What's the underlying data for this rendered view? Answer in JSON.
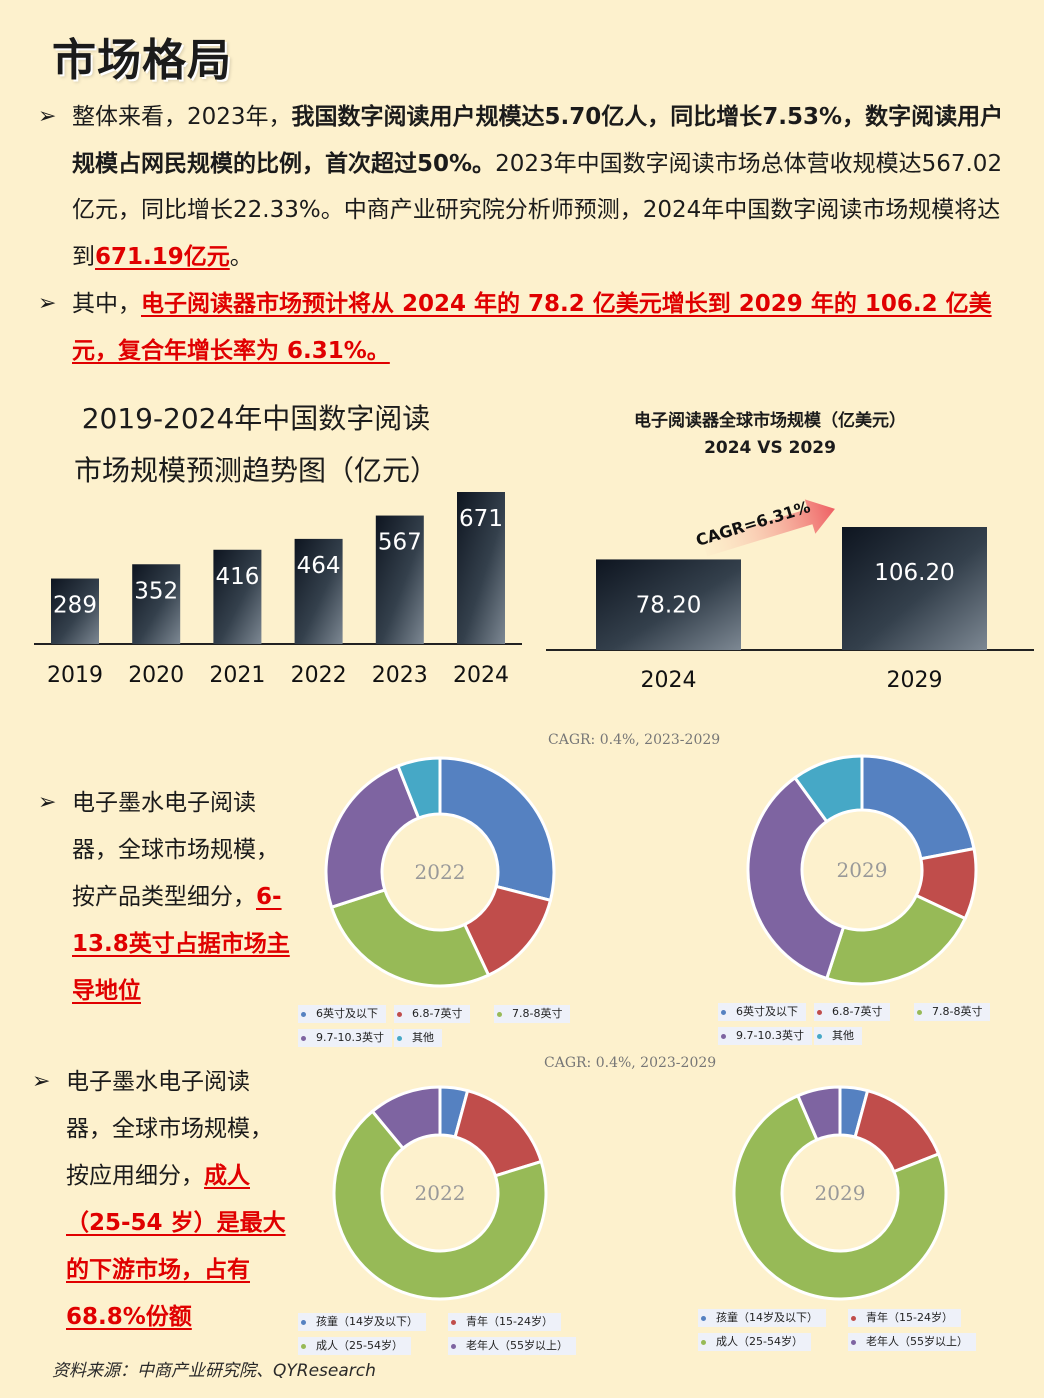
{
  "page": {
    "title": "市场格局",
    "source": "资料来源：中商产业研究院、QYResearch"
  },
  "para1": {
    "arrow": "➢",
    "t1": "整体来看，2023年，",
    "t2": "我国数字阅读用户规模达5.70亿人，同比增长7.53%，数字阅读用户规模占网民规模的比例，首次超过50%。",
    "t3": "2023年中国数字阅读市场总体营收规模达567.02亿元，同比增长22.33%。中商产业研究院分析师预测，2024年中国数字阅读市场规模将达到",
    "t4": "671.19亿元",
    "t5": "。"
  },
  "para2": {
    "arrow": "➢",
    "t1": "其中，",
    "t2": "电子阅读器市场预计将从 2024 年的 78.2 亿美元增长到 2029 年的 106.2 亿美元，复合年增长率为 6.31%。"
  },
  "chart_data": [
    {
      "type": "bar",
      "title": "2019-2024年中国数字阅读市场规模预测趋势图（亿元）",
      "categories": [
        "2019",
        "2020",
        "2021",
        "2022",
        "2023",
        "2024"
      ],
      "values": [
        289,
        352,
        416,
        464,
        567,
        671
      ],
      "value_labels": [
        "289",
        "352",
        "416",
        "464",
        "567",
        "671"
      ],
      "xlabel": "",
      "ylabel": "",
      "ylim": [
        0,
        720
      ]
    },
    {
      "type": "bar",
      "title": "电子阅读器全球市场规模（亿美元）",
      "subtitle": "2024 VS 2029",
      "categories": [
        "2024",
        "2029"
      ],
      "values": [
        78.2,
        106.2
      ],
      "value_labels": [
        "78.20",
        "106.20"
      ],
      "annotation": "CAGR=6.31%",
      "ylim": [
        0,
        120
      ]
    },
    {
      "type": "pie",
      "center_label": "2022",
      "cagr_note": "CAGR: 0.4%, 2023-2029",
      "labels": [
        "6英寸及以下",
        "6.8-7英寸",
        "7.8-8英寸",
        "9.7-10.3英寸",
        "其他"
      ],
      "values": [
        29,
        14,
        27,
        24,
        6
      ]
    },
    {
      "type": "pie",
      "center_label": "2029",
      "labels": [
        "6英寸及以下",
        "6.8-7英寸",
        "7.8-8英寸",
        "9.7-10.3英寸",
        "其他"
      ],
      "values": [
        22,
        10,
        23,
        35,
        10
      ]
    },
    {
      "type": "pie",
      "center_label": "2022",
      "cagr_note": "CAGR: 0.4%, 2023-2029",
      "labels": [
        "孩童（14岁及以下）",
        "青年（15-24岁）",
        "成人（25-54岁）",
        "老年人（55岁以上）"
      ],
      "values": [
        4.2,
        16,
        68.8,
        11
      ]
    },
    {
      "type": "pie",
      "center_label": "2029",
      "labels": [
        "孩童（14岁及以下）",
        "青年（15-24岁）",
        "成人（25-54岁）",
        "老年人（55岁以上）"
      ],
      "values": [
        4.2,
        14.8,
        74.5,
        6.5
      ]
    }
  ],
  "colors": {
    "blue": "#5581c1",
    "red": "#c04d4b",
    "green": "#97ba57",
    "purple": "#7e64a1",
    "cyan": "#46a8c6"
  },
  "side1": {
    "arrow": "➢",
    "t1": "电子墨水电子阅读器，全球市场规模，按产品类型细分，",
    "t2": "6-13.8英寸占据市场主导地位"
  },
  "side2": {
    "arrow": "➢",
    "t1": "电子墨水电子阅读器，全球市场规模，按应用细分，",
    "t2": "成人（25-54 岁）是最大的下游市场，占有68.8%份额"
  }
}
